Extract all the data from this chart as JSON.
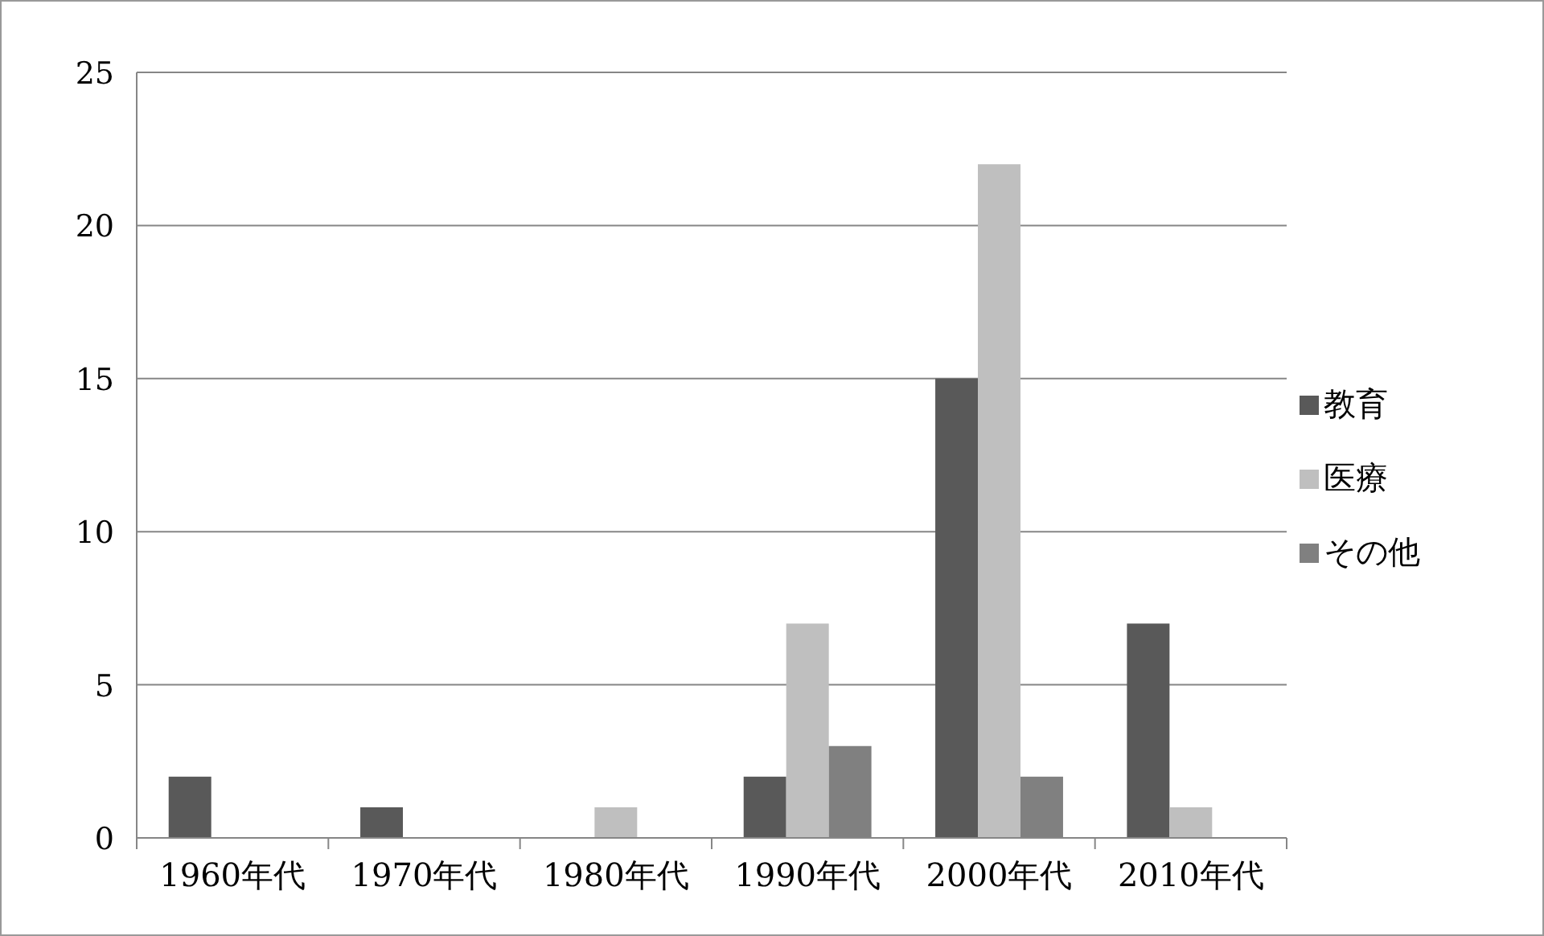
{
  "chart_data": {
    "type": "bar",
    "categories": [
      "1960年代",
      "1970年代",
      "1980年代",
      "1990年代",
      "2000年代",
      "2010年代"
    ],
    "series": [
      {
        "name": "教育",
        "color": "#595959",
        "values": [
          2,
          1,
          0,
          2,
          15,
          7
        ]
      },
      {
        "name": "医療",
        "color": "#bfbfbf",
        "values": [
          0,
          0,
          1,
          7,
          22,
          1
        ]
      },
      {
        "name": "その他",
        "color": "#808080",
        "values": [
          0,
          0,
          0,
          3,
          2,
          0
        ]
      }
    ],
    "ylim": [
      0,
      25
    ],
    "yticks": [
      0,
      5,
      10,
      15,
      20,
      25
    ],
    "grid": "y",
    "legend": "right"
  }
}
